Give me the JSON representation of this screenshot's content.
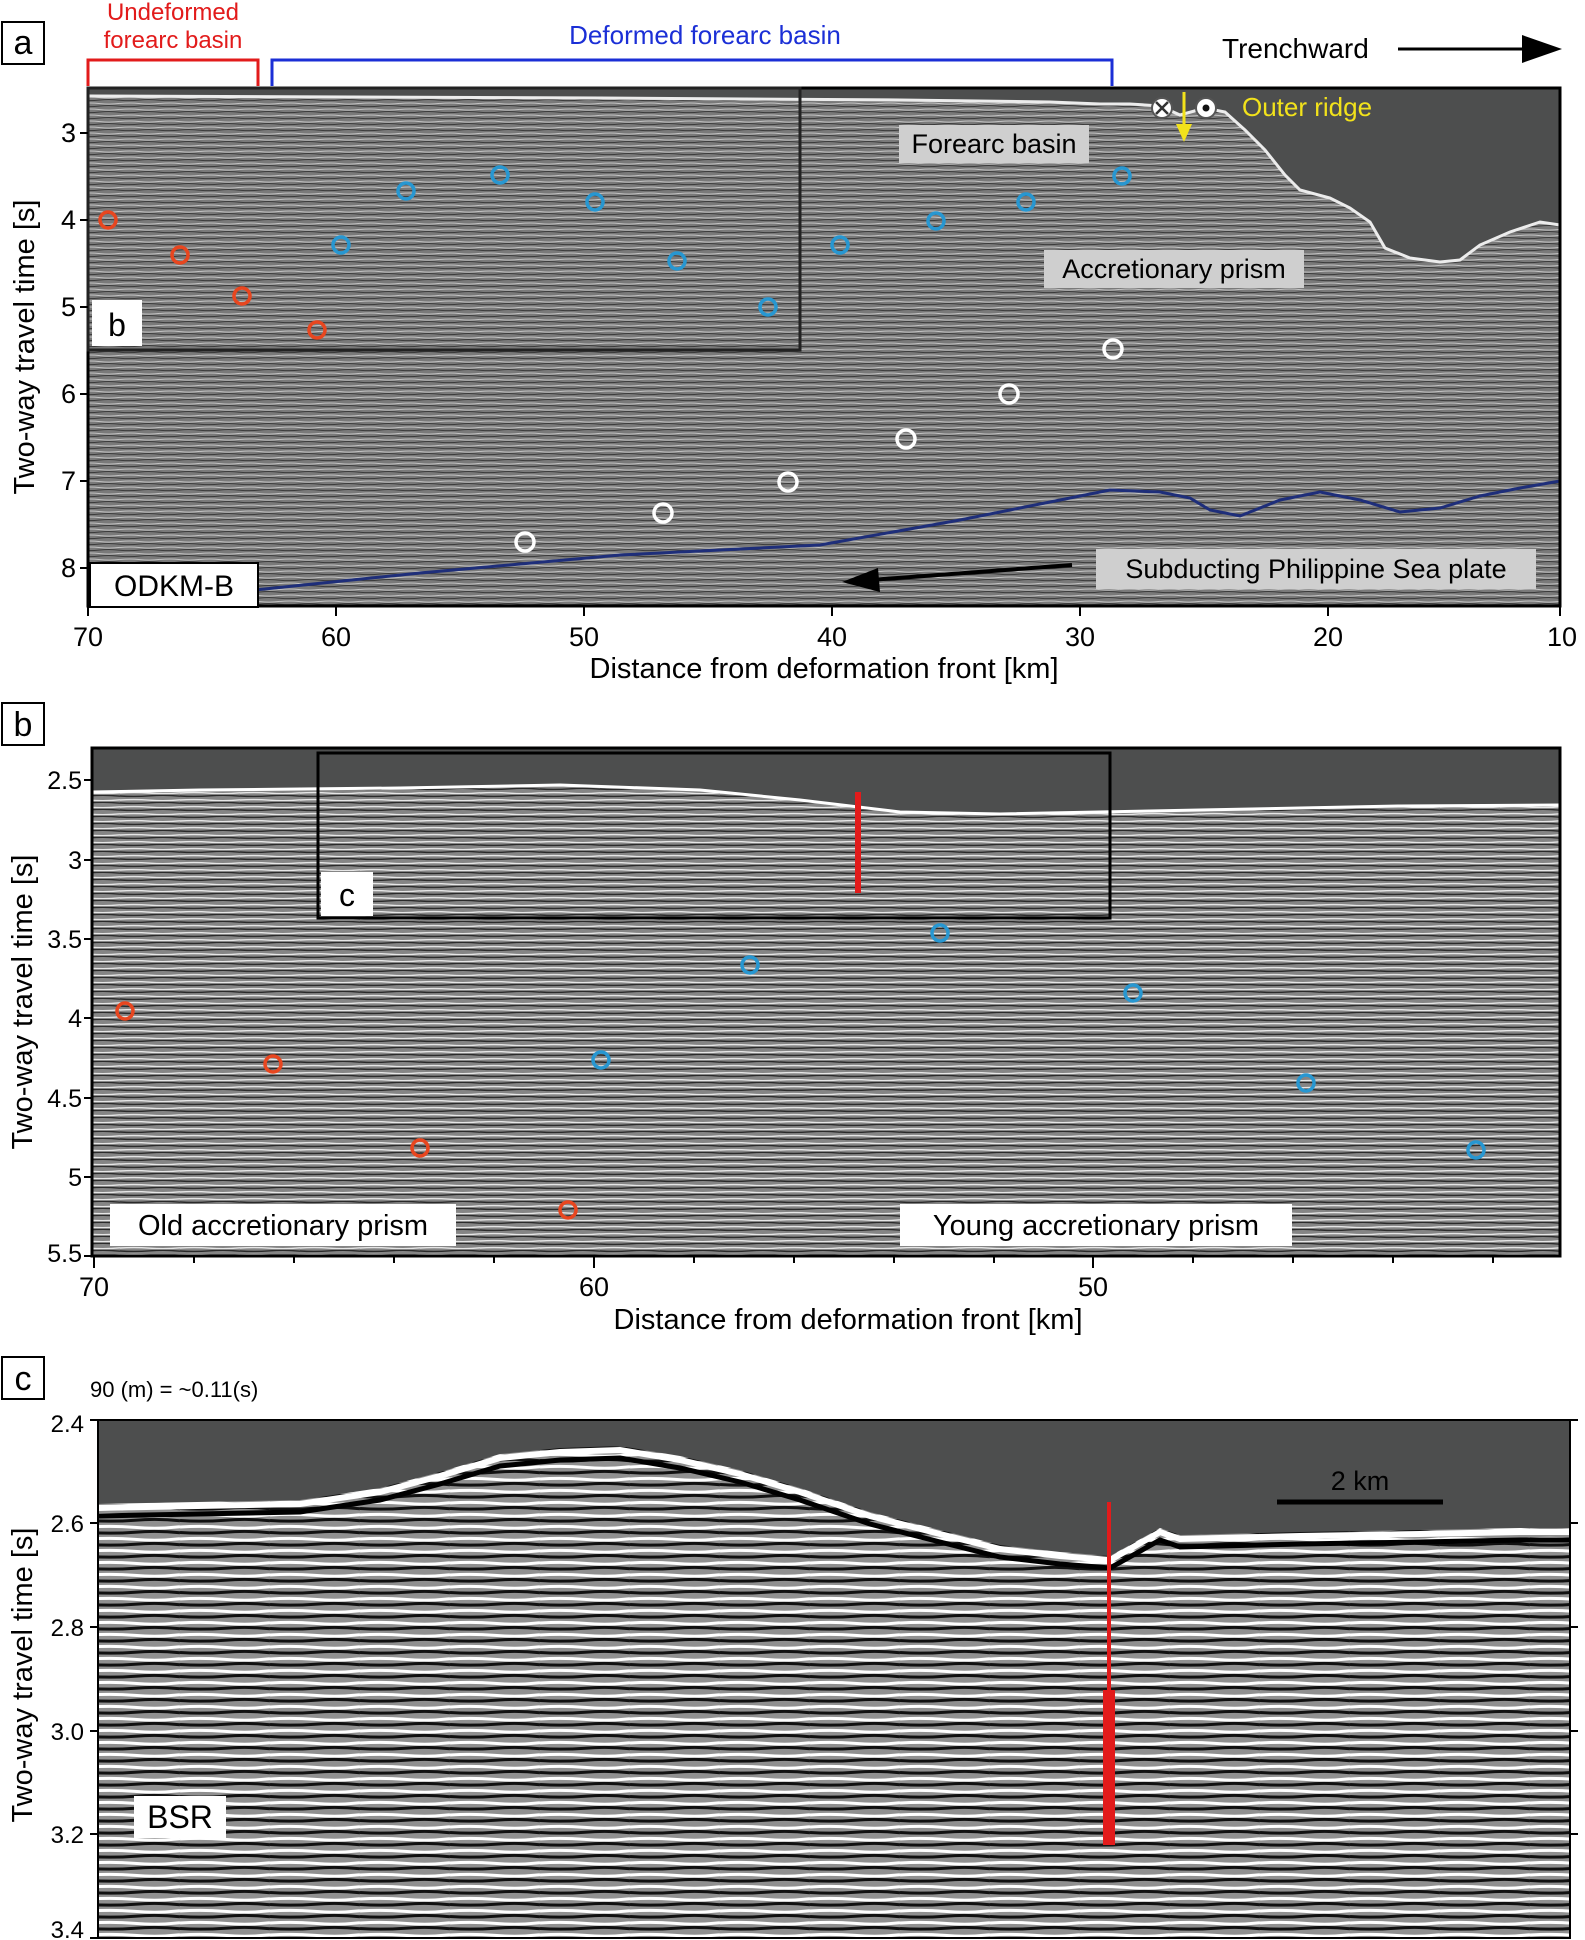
{
  "panel_a": {
    "panel_letter": "a",
    "undeformed_label_line1": "Undeformed",
    "undeformed_label_line2": "forearc basin",
    "deformed_label": "Deformed forearc basin",
    "trenchward_label": "Trenchward",
    "outer_ridge_label": "Outer ridge",
    "forearc_basin_label": "Forearc basin",
    "accretionary_prism_label": "Accretionary prism",
    "plate_label": "Subducting Philippine Sea plate",
    "line_name": "ODKM-B",
    "inset_letter": "b",
    "y_axis_label": "Two-way travel time [s]",
    "x_axis_label": "Distance from deformation front [km]",
    "y_ticks": [
      "3",
      "4",
      "5",
      "6",
      "7",
      "8"
    ],
    "x_ticks": [
      "70",
      "60",
      "50",
      "40",
      "30",
      "20",
      "10"
    ]
  },
  "panel_b": {
    "panel_letter": "b",
    "inset_letter": "c",
    "old_prism_label": "Old accretionary prism",
    "young_prism_label": "Young accretionary prism",
    "y_axis_label": "Two-way travel time [s]",
    "x_axis_label": "Distance from deformation front [km]",
    "y_ticks": [
      "2.5",
      "3",
      "3.5",
      "4",
      "4.5",
      "5",
      "5.5"
    ],
    "x_ticks": [
      "70",
      "60",
      "50"
    ]
  },
  "panel_c": {
    "panel_letter": "c",
    "conversion_note": "90 (m) = ~0.11(s)",
    "scale_label": "2 km",
    "bsr_label": "BSR",
    "y_axis_label": "Two-way travel time [s]",
    "y_ticks": [
      "2.4",
      "2.6",
      "2.8",
      "3.0",
      "3.2",
      "3.4"
    ]
  },
  "colors": {
    "seismic_bg": "#7b7b7b",
    "water": "#4d4e4e",
    "red_marker": "#e8461f",
    "blue_marker": "#2797d1",
    "white_marker": "#ffffff",
    "plate_line": "#1e2e7a",
    "yellow": "#f2e21b",
    "red_bracket": "#e21b1b",
    "blue_bracket": "#1b2fd6"
  }
}
